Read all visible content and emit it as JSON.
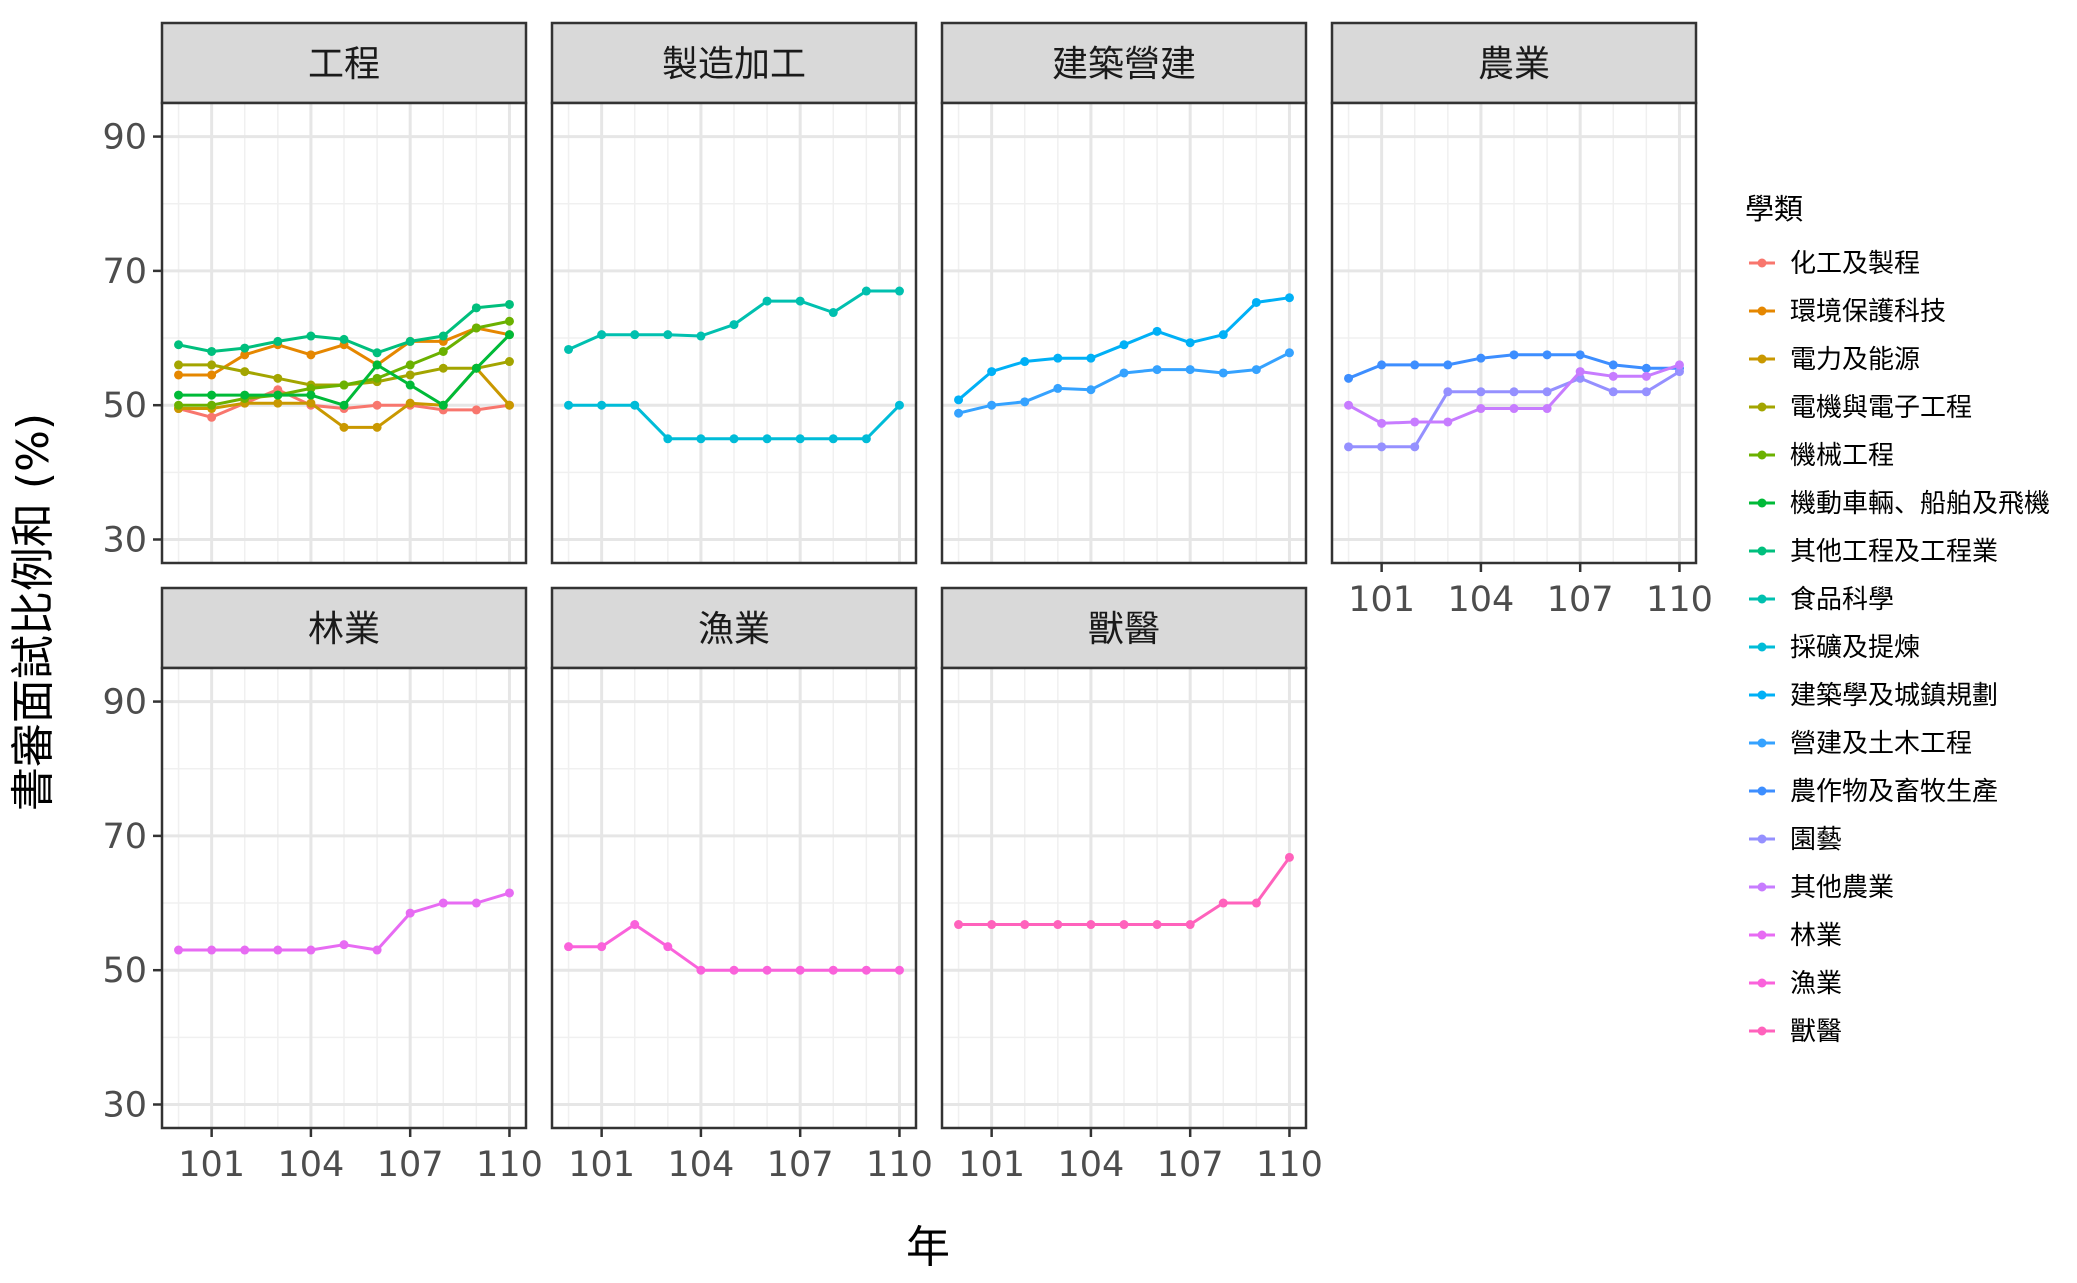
{
  "chart_data": {
    "type": "line",
    "xlabel": "年",
    "ylabel": "書審面試比例和 (%)",
    "x": [
      100,
      101,
      102,
      103,
      104,
      105,
      106,
      107,
      108,
      109,
      110
    ],
    "x_ticks": [
      101,
      104,
      107,
      110
    ],
    "y_ticks": [
      30,
      50,
      70,
      90
    ],
    "xlim": [
      99.5,
      110.5
    ],
    "ylim": [
      26.5,
      95
    ],
    "grid": true,
    "legend_position": "right",
    "legend_title": "學類",
    "panels": [
      {
        "title": "工程",
        "series": [
          {
            "name": "化工及製程",
            "color": "#F8766D",
            "values": [
              49.5,
              48.2,
              50.3,
              52.3,
              50.0,
              49.5,
              50.0,
              50.0,
              49.3,
              49.3,
              50.0
            ]
          },
          {
            "name": "環境保護科技",
            "color": "#E58700",
            "values": [
              54.5,
              54.5,
              57.5,
              59.0,
              57.5,
              59.0,
              56.0,
              59.5,
              59.5,
              61.5,
              60.5
            ]
          },
          {
            "name": "電力及能源",
            "color": "#C99800",
            "values": [
              49.5,
              49.5,
              50.3,
              50.3,
              50.3,
              46.7,
              46.7,
              50.3,
              50.0,
              55.5,
              50.0
            ]
          },
          {
            "name": "電機與電子工程",
            "color": "#A3A500",
            "values": [
              56.0,
              56.0,
              55.0,
              54.0,
              53.0,
              53.0,
              53.5,
              54.5,
              55.5,
              55.5,
              56.5
            ]
          },
          {
            "name": "機械工程",
            "color": "#6BB100",
            "values": [
              50.0,
              50.0,
              51.0,
              51.5,
              52.5,
              53.0,
              54.0,
              56.0,
              58.0,
              61.5,
              62.5
            ]
          },
          {
            "name": "機動車輛、船舶及飛機",
            "color": "#00BA38",
            "values": [
              51.5,
              51.5,
              51.5,
              51.5,
              51.5,
              50.0,
              56.0,
              53.0,
              50.0,
              55.5,
              60.5
            ]
          },
          {
            "name": "其他工程及工程業",
            "color": "#00BF7D",
            "values": [
              59.0,
              58.0,
              58.5,
              59.5,
              60.3,
              59.8,
              57.8,
              59.5,
              60.3,
              64.5,
              65.0
            ]
          }
        ]
      },
      {
        "title": "製造加工",
        "series": [
          {
            "name": "食品科學",
            "color": "#00C0AF",
            "values": [
              58.3,
              60.5,
              60.5,
              60.5,
              60.3,
              62.0,
              65.5,
              65.5,
              63.8,
              67.0,
              67.0
            ]
          },
          {
            "name": "採礦及提煉",
            "color": "#00BCD8",
            "values": [
              50.0,
              50.0,
              50.0,
              45.0,
              45.0,
              45.0,
              45.0,
              45.0,
              45.0,
              45.0,
              50.0
            ]
          }
        ]
      },
      {
        "title": "建築營建",
        "series": [
          {
            "name": "建築學及城鎮規劃",
            "color": "#00B0F6",
            "values": [
              50.8,
              55.0,
              56.5,
              57.0,
              57.0,
              59.0,
              61.0,
              59.3,
              60.5,
              65.3,
              66.0
            ]
          },
          {
            "name": "營建及土木工程",
            "color": "#35A2FF",
            "values": [
              48.8,
              50.0,
              50.5,
              52.5,
              52.3,
              54.8,
              55.3,
              55.3,
              54.8,
              55.3,
              57.8
            ]
          }
        ]
      },
      {
        "title": "農業",
        "series": [
          {
            "name": "農作物及畜牧生產",
            "color": "#3D8EFF",
            "values": [
              54.0,
              56.0,
              56.0,
              56.0,
              57.0,
              57.5,
              57.5,
              57.5,
              56.0,
              55.5,
              55.5
            ]
          },
          {
            "name": "園藝",
            "color": "#9590FF",
            "values": [
              43.8,
              43.8,
              43.8,
              52.0,
              52.0,
              52.0,
              52.0,
              54.0,
              52.0,
              52.0,
              55.0
            ]
          },
          {
            "name": "其他農業",
            "color": "#C77CFF",
            "values": [
              50.0,
              47.3,
              47.5,
              47.5,
              49.5,
              49.5,
              49.5,
              55.0,
              54.3,
              54.3,
              56.0
            ]
          }
        ]
      },
      {
        "title": "林業",
        "series": [
          {
            "name": "林業",
            "color": "#E76BF3",
            "values": [
              53.0,
              53.0,
              53.0,
              53.0,
              53.0,
              53.8,
              53.0,
              58.5,
              60.0,
              60.0,
              61.5
            ]
          }
        ]
      },
      {
        "title": "漁業",
        "series": [
          {
            "name": "漁業",
            "color": "#FA62DB",
            "values": [
              53.5,
              53.5,
              56.8,
              53.5,
              50.0,
              50.0,
              50.0,
              50.0,
              50.0,
              50.0,
              50.0
            ]
          }
        ]
      },
      {
        "title": "獸醫",
        "series": [
          {
            "name": "獸醫",
            "color": "#FF62BC",
            "values": [
              56.8,
              56.8,
              56.8,
              56.8,
              56.8,
              56.8,
              56.8,
              56.8,
              60.0,
              60.0,
              66.8
            ]
          }
        ]
      }
    ]
  }
}
